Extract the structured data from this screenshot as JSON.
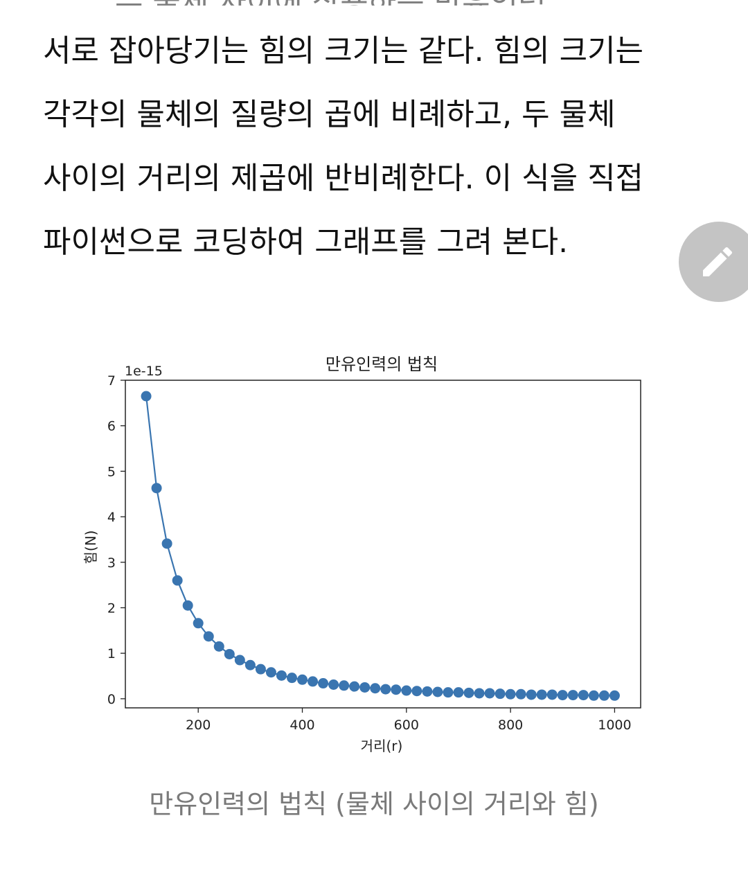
{
  "article": {
    "top_fragment": "... 두 물체 사이에 작용하는 만유인력 ...",
    "lines": [
      "서로 잡아당기는 힘의 크기는 같다. 힘의 크기는",
      "각각의 물체의 질량의 곱에 비례하고, 두 물체",
      "사이의 거리의 제곱에 반비례한다. 이 식을 직접",
      "파이썬으로 코딩하여 그래프를 그려 본다."
    ],
    "caption": "만유인력의 법칙 (물체 사이의 거리와 힘)"
  },
  "edit_button": {
    "icon": "pencil-icon",
    "color": "#c4c4c4"
  },
  "chart_data": {
    "type": "line",
    "title": "만유인력의 법칙",
    "xlabel": "거리(r)",
    "ylabel": "힘(N)",
    "offset_text": "1e-15",
    "xlim": [
      60,
      1050
    ],
    "ylim": [
      -0.2,
      7
    ],
    "xticks": [
      200,
      400,
      600,
      800,
      1000
    ],
    "yticks": [
      0,
      1,
      2,
      3,
      4,
      5,
      6,
      7
    ],
    "marker": "circle",
    "color": "#3a75b0",
    "series": [
      {
        "x": [
          100,
          120,
          140,
          160,
          180,
          200,
          220,
          240,
          260,
          280,
          300,
          320,
          340,
          360,
          380,
          400,
          420,
          440,
          460,
          480,
          500,
          520,
          540,
          560,
          580,
          600,
          620,
          640,
          660,
          680,
          700,
          720,
          740,
          760,
          780,
          800,
          820,
          840,
          860,
          880,
          900,
          920,
          940,
          960,
          980,
          1000
        ],
        "y": [
          6.65,
          4.63,
          3.41,
          2.6,
          2.05,
          1.66,
          1.37,
          1.15,
          0.98,
          0.85,
          0.74,
          0.65,
          0.58,
          0.51,
          0.46,
          0.42,
          0.38,
          0.34,
          0.31,
          0.29,
          0.27,
          0.25,
          0.23,
          0.21,
          0.2,
          0.18,
          0.17,
          0.16,
          0.15,
          0.14,
          0.14,
          0.13,
          0.12,
          0.12,
          0.11,
          0.1,
          0.1,
          0.09,
          0.09,
          0.09,
          0.08,
          0.08,
          0.08,
          0.07,
          0.07,
          0.07
        ]
      }
    ]
  }
}
